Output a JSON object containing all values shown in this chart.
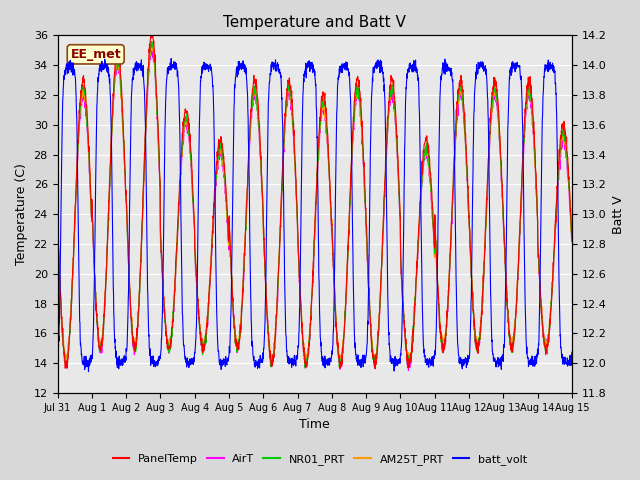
{
  "title": "Temperature and Batt V",
  "xlabel": "Time",
  "ylabel_left": "Temperature (C)",
  "ylabel_right": "Batt V",
  "annotation": "EE_met",
  "ylim_left": [
    12,
    36
  ],
  "ylim_right": [
    11.8,
    14.2
  ],
  "yticks_left": [
    12,
    14,
    16,
    18,
    20,
    22,
    24,
    26,
    28,
    30,
    32,
    34,
    36
  ],
  "yticks_right": [
    11.8,
    12.0,
    12.2,
    12.4,
    12.6,
    12.8,
    13.0,
    13.2,
    13.4,
    13.6,
    13.8,
    14.0,
    14.2
  ],
  "xticklabels": [
    "Jul 31",
    "Aug 1",
    "Aug 2",
    "Aug 3",
    "Aug 4",
    "Aug 5",
    "Aug 6",
    "Aug 7",
    "Aug 8",
    "Aug 9",
    "Aug 10",
    "Aug 11",
    "Aug 12",
    "Aug 13",
    "Aug 14",
    "Aug 15"
  ],
  "legend": [
    {
      "label": "PanelTemp",
      "color": "#ff0000"
    },
    {
      "label": "AirT",
      "color": "#ff00ff"
    },
    {
      "label": "NR01_PRT",
      "color": "#00cc00"
    },
    {
      "label": "AM25T_PRT",
      "color": "#ff9900"
    },
    {
      "label": "batt_volt",
      "color": "#0000ff"
    }
  ],
  "background_color": "#d8d8d8",
  "plot_bg_inner": "#e8e8e8",
  "title_fontsize": 11,
  "axis_fontsize": 9,
  "tick_fontsize": 8,
  "lw": 0.8
}
